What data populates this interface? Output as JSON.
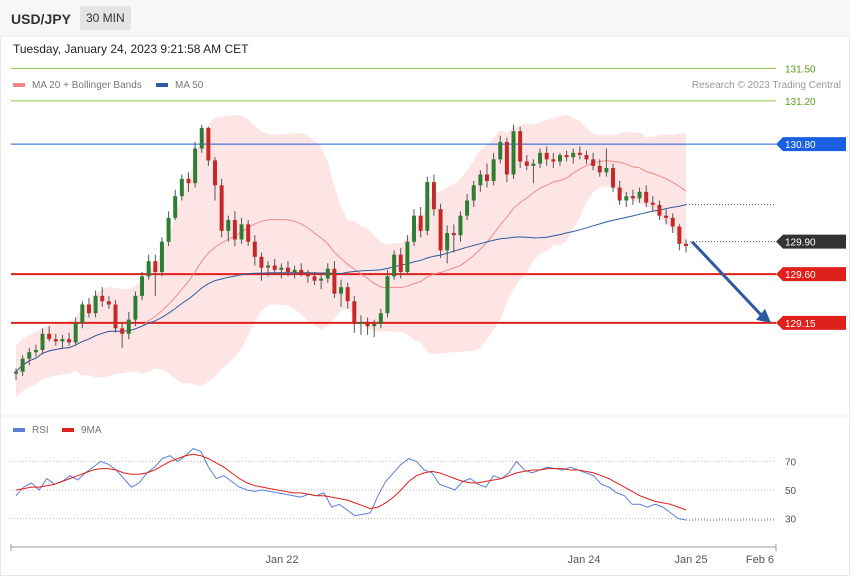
{
  "header": {
    "symbol": "USD/JPY",
    "interval": "30 MIN"
  },
  "timestamp": "Tuesday, January 24, 2023 9:21:58 AM CET",
  "legend": {
    "ma20": {
      "label": "MA 20 + Bollinger Bands",
      "color": "#f28a8a"
    },
    "ma50": {
      "label": "MA 50",
      "color": "#2f5aa0"
    }
  },
  "credit": "Research © 2023 Trading Central",
  "rsi_legend": {
    "rsi": {
      "label": "RSI",
      "color": "#5b7fd6"
    },
    "ma9": {
      "label": "9MA",
      "color": "#e0201b"
    }
  },
  "colors": {
    "up": "#2e7d32",
    "down": "#c62828",
    "band": "#fde2e2",
    "resistance": "#8bc34a",
    "pivot": "#1a5fe0",
    "support": "#e0201b",
    "arrow": "#2f5aa0",
    "last": "#333333"
  },
  "chart_data": [
    {
      "type": "candlestick",
      "title": "USD/JPY 30 MIN",
      "price_range": [
        128.3,
        131.78
      ],
      "levels": [
        {
          "value": 131.5,
          "label": "131.50",
          "kind": "resistance"
        },
        {
          "value": 131.2,
          "label": "131.20",
          "kind": "resistance"
        },
        {
          "value": 130.8,
          "label": "130.80",
          "kind": "pivot"
        },
        {
          "value": 129.9,
          "label": "129.90",
          "kind": "last"
        },
        {
          "value": 129.6,
          "label": "129.60",
          "kind": "support"
        },
        {
          "value": 129.15,
          "label": "129.15",
          "kind": "support"
        }
      ],
      "candles": [
        [
          128.68,
          128.73,
          128.62,
          128.7
        ],
        [
          128.7,
          128.85,
          128.66,
          128.82
        ],
        [
          128.82,
          128.92,
          128.76,
          128.88
        ],
        [
          128.88,
          128.95,
          128.84,
          128.9
        ],
        [
          128.9,
          129.1,
          128.86,
          129.05
        ],
        [
          129.05,
          129.12,
          128.98,
          129.0
        ],
        [
          129.0,
          129.05,
          128.94,
          128.98
        ],
        [
          128.98,
          129.04,
          128.92,
          129.0
        ],
        [
          129.0,
          129.06,
          128.94,
          128.97
        ],
        [
          128.97,
          129.2,
          128.95,
          129.15
        ],
        [
          129.15,
          129.35,
          129.1,
          129.32
        ],
        [
          129.32,
          129.38,
          129.2,
          129.24
        ],
        [
          129.24,
          129.45,
          129.2,
          129.4
        ],
        [
          129.4,
          129.48,
          129.3,
          129.35
        ],
        [
          129.35,
          129.4,
          129.28,
          129.32
        ],
        [
          129.32,
          129.36,
          129.06,
          129.1
        ],
        [
          129.1,
          129.15,
          128.92,
          129.05
        ],
        [
          129.05,
          129.25,
          129.0,
          129.18
        ],
        [
          129.18,
          129.44,
          129.12,
          129.4
        ],
        [
          129.4,
          129.62,
          129.36,
          129.58
        ],
        [
          129.58,
          129.78,
          129.55,
          129.72
        ],
        [
          129.72,
          129.78,
          129.4,
          129.62
        ],
        [
          129.62,
          129.94,
          129.58,
          129.9
        ],
        [
          129.9,
          130.18,
          129.86,
          130.12
        ],
        [
          130.12,
          130.38,
          130.1,
          130.32
        ],
        [
          130.32,
          130.52,
          130.28,
          130.48
        ],
        [
          130.48,
          130.54,
          130.36,
          130.44
        ],
        [
          130.44,
          130.82,
          130.4,
          130.76
        ],
        [
          130.76,
          130.98,
          130.72,
          130.95
        ],
        [
          130.95,
          130.96,
          130.6,
          130.65
        ],
        [
          130.65,
          130.68,
          130.28,
          130.42
        ],
        [
          130.42,
          130.48,
          129.94,
          130.0
        ],
        [
          130.0,
          130.14,
          129.9,
          130.1
        ],
        [
          130.1,
          130.18,
          129.86,
          129.92
        ],
        [
          129.92,
          130.12,
          129.88,
          130.06
        ],
        [
          130.06,
          130.1,
          129.86,
          129.9
        ],
        [
          129.9,
          129.96,
          129.68,
          129.76
        ],
        [
          129.76,
          129.8,
          129.54,
          129.66
        ],
        [
          129.66,
          129.72,
          129.58,
          129.68
        ],
        [
          129.68,
          129.74,
          129.6,
          129.64
        ],
        [
          129.64,
          129.7,
          129.56,
          129.66
        ],
        [
          129.66,
          129.72,
          129.58,
          129.62
        ],
        [
          129.62,
          129.68,
          129.56,
          129.64
        ],
        [
          129.64,
          129.7,
          129.58,
          129.6
        ],
        [
          129.6,
          129.64,
          129.52,
          129.58
        ],
        [
          129.58,
          129.62,
          129.5,
          129.54
        ],
        [
          129.54,
          129.6,
          129.46,
          129.56
        ],
        [
          129.56,
          129.7,
          129.52,
          129.65
        ],
        [
          129.65,
          129.72,
          129.38,
          129.42
        ],
        [
          129.42,
          129.55,
          129.3,
          129.48
        ],
        [
          129.48,
          129.52,
          129.28,
          129.35
        ],
        [
          129.35,
          129.4,
          129.06,
          129.14
        ],
        [
          129.14,
          129.22,
          129.04,
          129.16
        ],
        [
          129.16,
          129.2,
          129.04,
          129.12
        ],
        [
          129.12,
          129.18,
          129.02,
          129.14
        ],
        [
          129.14,
          129.28,
          129.1,
          129.24
        ],
        [
          129.24,
          129.64,
          129.2,
          129.58
        ],
        [
          129.58,
          129.82,
          129.55,
          129.78
        ],
        [
          129.78,
          129.84,
          129.56,
          129.62
        ],
        [
          129.62,
          129.96,
          129.6,
          129.9
        ],
        [
          129.9,
          130.2,
          129.86,
          130.14
        ],
        [
          130.14,
          130.22,
          129.94,
          130.0
        ],
        [
          130.0,
          130.5,
          129.96,
          130.45
        ],
        [
          130.45,
          130.52,
          130.14,
          130.2
        ],
        [
          130.2,
          130.25,
          129.75,
          129.82
        ],
        [
          129.82,
          130.05,
          129.7,
          129.98
        ],
        [
          129.98,
          130.06,
          129.8,
          129.96
        ],
        [
          129.96,
          130.18,
          129.9,
          130.14
        ],
        [
          130.14,
          130.34,
          130.1,
          130.28
        ],
        [
          130.28,
          130.46,
          130.22,
          130.42
        ],
        [
          130.42,
          130.56,
          130.36,
          130.52
        ],
        [
          130.52,
          130.62,
          130.4,
          130.46
        ],
        [
          130.46,
          130.72,
          130.42,
          130.66
        ],
        [
          130.66,
          130.88,
          130.62,
          130.82
        ],
        [
          130.82,
          130.86,
          130.45,
          130.52
        ],
        [
          130.52,
          130.98,
          130.48,
          130.92
        ],
        [
          130.92,
          130.96,
          130.58,
          130.64
        ],
        [
          130.64,
          130.7,
          130.56,
          130.6
        ],
        [
          130.6,
          130.66,
          130.44,
          130.62
        ],
        [
          130.62,
          130.76,
          130.58,
          130.72
        ],
        [
          130.72,
          130.78,
          130.6,
          130.66
        ],
        [
          130.66,
          130.72,
          130.58,
          130.64
        ],
        [
          130.64,
          130.72,
          130.6,
          130.7
        ],
        [
          130.7,
          130.74,
          130.64,
          130.68
        ],
        [
          130.68,
          130.76,
          130.62,
          130.72
        ],
        [
          130.72,
          130.78,
          130.66,
          130.7
        ],
        [
          130.7,
          130.74,
          130.62,
          130.66
        ],
        [
          130.66,
          130.72,
          130.56,
          130.6
        ],
        [
          130.6,
          130.66,
          130.5,
          130.54
        ],
        [
          130.54,
          130.76,
          130.5,
          130.58
        ],
        [
          130.58,
          130.62,
          130.36,
          130.4
        ],
        [
          130.4,
          130.46,
          130.24,
          130.28
        ],
        [
          130.28,
          130.36,
          130.22,
          130.32
        ],
        [
          130.32,
          130.38,
          130.24,
          130.3
        ],
        [
          130.3,
          130.4,
          130.26,
          130.36
        ],
        [
          130.36,
          130.42,
          130.22,
          130.26
        ],
        [
          130.26,
          130.32,
          130.18,
          130.24
        ],
        [
          130.24,
          130.28,
          130.1,
          130.14
        ],
        [
          130.14,
          130.2,
          130.06,
          130.12
        ],
        [
          130.12,
          130.16,
          129.98,
          130.04
        ],
        [
          130.04,
          130.06,
          129.82,
          129.88
        ],
        [
          129.88,
          129.92,
          129.8,
          129.86
        ]
      ]
    },
    {
      "type": "line",
      "title": "RSI",
      "y_ticks": [
        70,
        50,
        30
      ],
      "ylim": [
        15,
        85
      ],
      "x_ticks": [
        "Jan 22",
        "Jan 24",
        "Jan 25",
        "Feb 6"
      ],
      "series": [
        {
          "name": "RSI",
          "values": [
            46,
            52,
            55,
            50,
            58,
            54,
            56,
            60,
            57,
            62,
            66,
            70,
            68,
            64,
            58,
            52,
            55,
            62,
            66,
            72,
            74,
            70,
            74,
            79,
            77,
            66,
            58,
            60,
            56,
            52,
            50,
            49,
            50,
            49,
            48,
            47,
            46,
            45,
            47,
            46,
            48,
            38,
            40,
            36,
            32,
            33,
            34,
            46,
            56,
            62,
            68,
            72,
            70,
            64,
            62,
            54,
            52,
            50,
            56,
            58,
            54,
            52,
            60,
            58,
            62,
            70,
            64,
            62,
            64,
            66,
            65,
            64,
            66,
            64,
            62,
            60,
            54,
            52,
            48,
            46,
            40,
            40,
            38,
            40,
            38,
            34,
            30,
            29
          ]
        },
        {
          "name": "9MA",
          "values": [
            50,
            51,
            52,
            52,
            53,
            54,
            56,
            58,
            60,
            62,
            64,
            65,
            65,
            64,
            62,
            61,
            61,
            62,
            64,
            67,
            70,
            72,
            74,
            75,
            74,
            72,
            69,
            66,
            62,
            58,
            55,
            53,
            52,
            51,
            50,
            49,
            48,
            48,
            47,
            46,
            46,
            45,
            44,
            43,
            41,
            39,
            37,
            38,
            41,
            45,
            50,
            56,
            60,
            62,
            63,
            62,
            60,
            58,
            56,
            55,
            55,
            56,
            57,
            58,
            60,
            62,
            63,
            64,
            64,
            65,
            65,
            65,
            64,
            64,
            63,
            62,
            60,
            58,
            55,
            52,
            49,
            46,
            44,
            42,
            41,
            40,
            38,
            36
          ]
        }
      ]
    }
  ]
}
